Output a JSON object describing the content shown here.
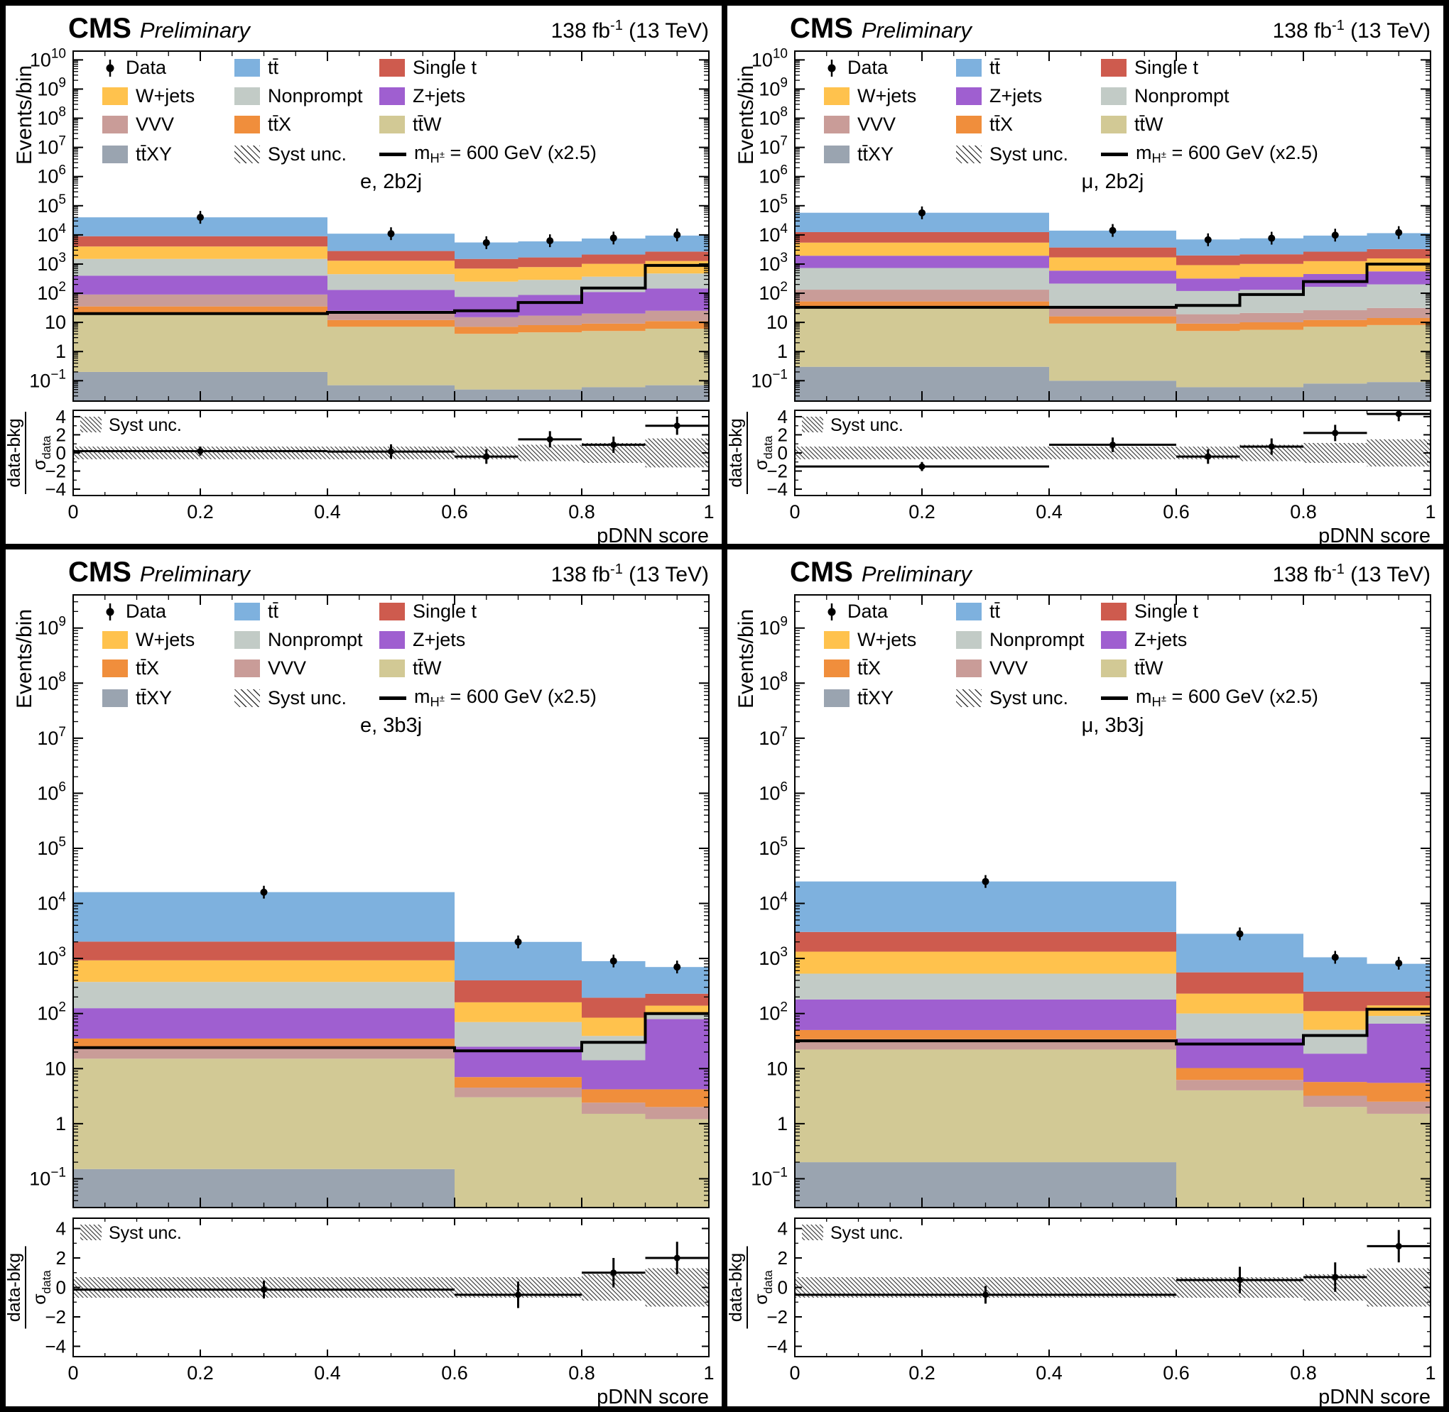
{
  "header": {
    "experiment": "CMS",
    "label": "Preliminary",
    "lumi": "138 fb",
    "lumi_sup": "-1",
    "lumi_rest": " (13 TeV)"
  },
  "labels": {
    "ylabel": "Events/bin",
    "xlabel": "pDNN score",
    "ratio_num": "data-bkg",
    "ratio_den_sigma": "σ",
    "ratio_den_sub": "data",
    "syst": "Syst unc.",
    "data": "Data",
    "signal_prefix": "m",
    "signal_sub": "H",
    "signal_subsup": "±",
    "signal_suffix": " = 600 GeV (x2.5)"
  },
  "palette": {
    "tt̄": "#7EB1DE",
    "Single t": "#CE5B4E",
    "W+jets": "#FFC24D",
    "Nonprompt": "#C2CBC6",
    "Z+jets": "#9F5FD0",
    "VVV": "#C99C98",
    "tt̄X": "#F08E3C",
    "tt̄W": "#D2C995",
    "tt̄XY": "#9AA4B0"
  },
  "chart_data": [
    {
      "type": "stacked_histogram_log",
      "channel": "e, 2b2j",
      "xlim": [
        0,
        1
      ],
      "ylim": [
        0.02,
        20000000000
      ],
      "xticks": [
        0,
        0.2,
        0.4,
        0.6,
        0.8,
        1
      ],
      "xtick_labels": [
        "0",
        "0.2",
        "0.4",
        "0.6",
        "0.8",
        "1"
      ],
      "bin_edges": [
        0,
        0.4,
        0.6,
        0.7,
        0.8,
        0.9,
        1.0
      ],
      "series": [
        {
          "name": "tt̄XY",
          "values": [
            0.2,
            0.07,
            0.05,
            0.05,
            0.06,
            0.07
          ]
        },
        {
          "name": "tt̄W",
          "values": [
            20,
            7,
            4,
            4.5,
            5,
            6
          ]
        },
        {
          "name": "tt̄X",
          "values": [
            15,
            5,
            3,
            3.5,
            4,
            5
          ]
        },
        {
          "name": "VVV",
          "values": [
            55,
            13,
            8,
            9,
            11,
            14
          ]
        },
        {
          "name": "Z+jets",
          "values": [
            310,
            105,
            60,
            70,
            90,
            120
          ]
        },
        {
          "name": "Nonprompt",
          "values": [
            1100,
            320,
            175,
            200,
            260,
            330
          ]
        },
        {
          "name": "W+jets",
          "values": [
            2500,
            850,
            450,
            500,
            650,
            800
          ]
        },
        {
          "name": "Single t",
          "values": [
            5000,
            1500,
            800,
            900,
            1100,
            1400
          ]
        },
        {
          "name": "tt̄",
          "values": [
            31000,
            8200,
            4000,
            4300,
            5400,
            6800
          ]
        }
      ],
      "signal": {
        "values": [
          20,
          22,
          25,
          48,
          150,
          900
        ]
      },
      "data_points": {
        "x": [
          0.2,
          0.5,
          0.65,
          0.75,
          0.85,
          0.95
        ],
        "y": [
          40000,
          11000,
          5400,
          6300,
          7800,
          10000
        ]
      },
      "ratio": {
        "ylim": [
          -4.7,
          4.7
        ],
        "yticks": [
          -4,
          -2,
          0,
          2,
          4
        ],
        "points_x": [
          0.2,
          0.5,
          0.65,
          0.75,
          0.85,
          0.95
        ],
        "points_y": [
          0.2,
          0.15,
          -0.4,
          1.5,
          0.9,
          3.0
        ],
        "points_yerr": [
          0.5,
          0.8,
          0.8,
          0.9,
          0.9,
          1.0
        ],
        "band_halfwidth": [
          0.7,
          0.7,
          0.7,
          0.9,
          1.1,
          1.6
        ]
      },
      "legend_rows": [
        [
          "Data",
          "tt̄",
          "Single t"
        ],
        [
          "W+jets",
          "Nonprompt",
          "Z+jets"
        ],
        [
          "VVV",
          "tt̄X",
          "tt̄W"
        ],
        [
          "tt̄XY",
          "Syst unc.",
          "signal"
        ]
      ]
    },
    {
      "type": "stacked_histogram_log",
      "channel": "μ, 2b2j",
      "xlim": [
        0,
        1
      ],
      "ylim": [
        0.02,
        20000000000
      ],
      "xticks": [
        0,
        0.2,
        0.4,
        0.6,
        0.8,
        1
      ],
      "xtick_labels": [
        "0",
        "0.2",
        "0.4",
        "0.6",
        "0.8",
        "1"
      ],
      "bin_edges": [
        0,
        0.4,
        0.6,
        0.7,
        0.8,
        0.9,
        1.0
      ],
      "series": [
        {
          "name": "tt̄XY",
          "values": [
            0.3,
            0.1,
            0.06,
            0.06,
            0.08,
            0.09
          ]
        },
        {
          "name": "tt̄W",
          "values": [
            30,
            9,
            5,
            5.5,
            7,
            8
          ]
        },
        {
          "name": "tt̄X",
          "values": [
            22,
            7,
            4,
            4.5,
            5,
            6
          ]
        },
        {
          "name": "VVV",
          "values": [
            80,
            18,
            10,
            11,
            14,
            17
          ]
        },
        {
          "name": "Nonprompt",
          "values": [
            600,
            180,
            100,
            110,
            140,
            170
          ]
        },
        {
          "name": "Z+jets",
          "values": [
            1200,
            380,
            200,
            230,
            290,
            360
          ]
        },
        {
          "name": "W+jets",
          "values": [
            3500,
            1100,
            600,
            650,
            800,
            1000
          ]
        },
        {
          "name": "Single t",
          "values": [
            7000,
            2000,
            1050,
            1150,
            1400,
            1700
          ]
        },
        {
          "name": "tt̄",
          "values": [
            45000,
            10300,
            5000,
            5450,
            6800,
            8200
          ]
        }
      ],
      "signal": {
        "values": [
          33,
          33,
          38,
          90,
          250,
          1000
        ]
      },
      "data_points": {
        "x": [
          0.2,
          0.5,
          0.65,
          0.75,
          0.85,
          0.95
        ],
        "y": [
          57000,
          14200,
          6800,
          7700,
          9800,
          12000
        ]
      },
      "ratio": {
        "ylim": [
          -4.7,
          4.7
        ],
        "yticks": [
          -4,
          -2,
          0,
          2,
          4
        ],
        "points_x": [
          0.2,
          0.5,
          0.65,
          0.75,
          0.85,
          0.95
        ],
        "points_y": [
          -1.5,
          0.9,
          -0.4,
          0.7,
          2.2,
          4.3
        ],
        "points_yerr": [
          0.5,
          0.8,
          0.8,
          0.9,
          0.9,
          0.8
        ],
        "band_halfwidth": [
          0.7,
          0.7,
          0.7,
          0.9,
          1.1,
          1.5
        ]
      },
      "legend_rows": [
        [
          "Data",
          "tt̄",
          "Single t"
        ],
        [
          "W+jets",
          "Z+jets",
          "Nonprompt"
        ],
        [
          "VVV",
          "tt̄X",
          "tt̄W"
        ],
        [
          "tt̄XY",
          "Syst unc.",
          "signal"
        ]
      ]
    },
    {
      "type": "stacked_histogram_log",
      "channel": "e, 3b3j",
      "xlim": [
        0,
        1
      ],
      "ylim": [
        0.03,
        4000000000
      ],
      "xticks": [
        0,
        0.2,
        0.4,
        0.6,
        0.8,
        1
      ],
      "xtick_labels": [
        "0",
        "0.2",
        "0.4",
        "0.6",
        "0.8",
        "1"
      ],
      "bin_edges": [
        0,
        0.6,
        0.8,
        0.9,
        1.0
      ],
      "series": [
        {
          "name": "tt̄XY",
          "values": [
            0.15,
            0.02,
            0.01,
            0.01
          ]
        },
        {
          "name": "tt̄W",
          "values": [
            15,
            3,
            1.5,
            1.2
          ]
        },
        {
          "name": "VVV",
          "values": [
            8,
            1.5,
            0.9,
            0.8
          ]
        },
        {
          "name": "tt̄X",
          "values": [
            12,
            2.5,
            1.8,
            2.2
          ]
        },
        {
          "name": "Z+jets",
          "values": [
            90,
            18,
            10,
            75
          ]
        },
        {
          "name": "Nonprompt",
          "values": [
            250,
            45,
            25,
            20
          ]
        },
        {
          "name": "W+jets",
          "values": [
            550,
            90,
            45,
            40
          ]
        },
        {
          "name": "Single t",
          "values": [
            1100,
            240,
            110,
            90
          ]
        },
        {
          "name": "tt̄",
          "values": [
            14000,
            1600,
            700,
            470
          ]
        }
      ],
      "signal": {
        "values": [
          24,
          21,
          30,
          100
        ]
      },
      "data_points": {
        "x": [
          0.3,
          0.7,
          0.85,
          0.95
        ],
        "y": [
          16000,
          2000,
          900,
          700
        ]
      },
      "ratio": {
        "ylim": [
          -4.7,
          4.7
        ],
        "yticks": [
          -4,
          -2,
          0,
          2,
          4
        ],
        "points_x": [
          0.3,
          0.7,
          0.85,
          0.95
        ],
        "points_y": [
          -0.15,
          -0.5,
          1.0,
          2.0
        ],
        "points_yerr": [
          0.6,
          0.9,
          1.0,
          1.1
        ],
        "band_halfwidth": [
          0.7,
          0.7,
          0.9,
          1.3
        ]
      },
      "legend_rows": [
        [
          "Data",
          "tt̄",
          "Single t"
        ],
        [
          "W+jets",
          "Nonprompt",
          "Z+jets"
        ],
        [
          "tt̄X",
          "VVV",
          "tt̄W"
        ],
        [
          "tt̄XY",
          "Syst unc.",
          "signal"
        ]
      ]
    },
    {
      "type": "stacked_histogram_log",
      "channel": "μ, 3b3j",
      "xlim": [
        0,
        1
      ],
      "ylim": [
        0.03,
        4000000000
      ],
      "xticks": [
        0,
        0.2,
        0.4,
        0.6,
        0.8,
        1
      ],
      "xtick_labels": [
        "0",
        "0.2",
        "0.4",
        "0.6",
        "0.8",
        "1"
      ],
      "bin_edges": [
        0,
        0.6,
        0.8,
        0.9,
        1.0
      ],
      "series": [
        {
          "name": "tt̄XY",
          "values": [
            0.2,
            0.03,
            0.015,
            0.012
          ]
        },
        {
          "name": "tt̄W",
          "values": [
            22,
            4,
            2,
            1.5
          ]
        },
        {
          "name": "VVV",
          "values": [
            12,
            2.2,
            1.2,
            1.0
          ]
        },
        {
          "name": "tt̄X",
          "values": [
            16,
            4,
            2.5,
            3
          ]
        },
        {
          "name": "Z+jets",
          "values": [
            130,
            25,
            13,
            60
          ]
        },
        {
          "name": "Nonprompt",
          "values": [
            350,
            65,
            32,
            25
          ]
        },
        {
          "name": "W+jets",
          "values": [
            800,
            130,
            60,
            50
          ]
        },
        {
          "name": "Single t",
          "values": [
            1700,
            330,
            140,
            110
          ]
        },
        {
          "name": "tt̄",
          "values": [
            22000,
            2250,
            800,
            550
          ]
        }
      ],
      "signal": {
        "values": [
          32,
          28,
          40,
          120
        ]
      },
      "data_points": {
        "x": [
          0.3,
          0.7,
          0.85,
          0.95
        ],
        "y": [
          25000,
          2800,
          1050,
          820
        ]
      },
      "ratio": {
        "ylim": [
          -4.7,
          4.7
        ],
        "yticks": [
          -4,
          -2,
          0,
          2,
          4
        ],
        "points_x": [
          0.3,
          0.7,
          0.85,
          0.95
        ],
        "points_y": [
          -0.5,
          0.5,
          0.7,
          2.8
        ],
        "points_yerr": [
          0.6,
          0.9,
          1.0,
          1.1
        ],
        "band_halfwidth": [
          0.7,
          0.7,
          0.9,
          1.3
        ]
      },
      "legend_rows": [
        [
          "Data",
          "tt̄",
          "Single t"
        ],
        [
          "W+jets",
          "Nonprompt",
          "Z+jets"
        ],
        [
          "tt̄X",
          "VVV",
          "tt̄W"
        ],
        [
          "tt̄XY",
          "Syst unc.",
          "signal"
        ]
      ]
    }
  ]
}
